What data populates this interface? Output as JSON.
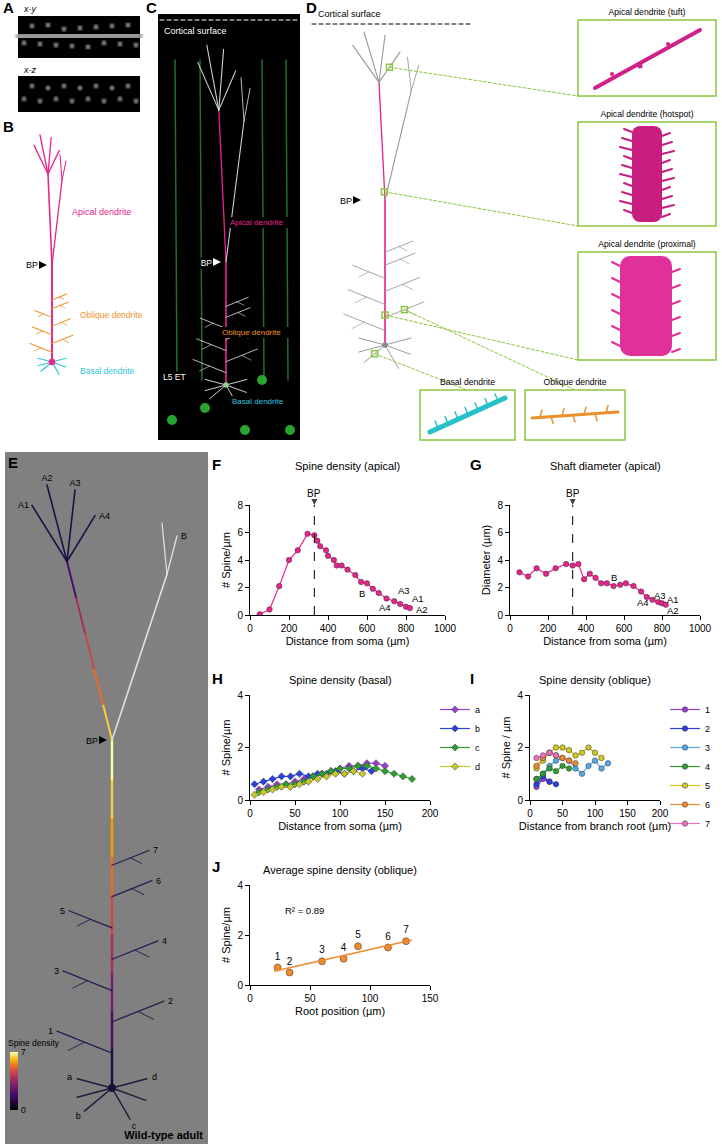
{
  "chart_data": [
    {
      "panel": "F",
      "type": "line",
      "title": "Spine density (apical)",
      "x_label": "Distance from soma (µm)",
      "y_label": "# Spine/µm",
      "xlim": [
        0,
        1000
      ],
      "xticks": [
        0,
        200,
        400,
        600,
        800,
        1000
      ],
      "ylim": [
        0,
        8
      ],
      "yticks": [
        0,
        2,
        4,
        6,
        8
      ],
      "grid": false,
      "series": [
        {
          "color": "#e8238c",
          "marker": "circle",
          "x": [
            50,
            100,
            150,
            200,
            245,
            295,
            330,
            345,
            360,
            390,
            400,
            430,
            445,
            470,
            500,
            540,
            570,
            600,
            630,
            660,
            700,
            740,
            770,
            800,
            820
          ],
          "values": [
            0.05,
            0.4,
            2.1,
            4.0,
            4.7,
            5.9,
            5.8,
            5.4,
            5.0,
            4.7,
            4.3,
            4.0,
            3.6,
            3.6,
            3.3,
            2.9,
            2.4,
            2.3,
            1.9,
            1.6,
            1.2,
            1.0,
            0.8,
            0.6,
            0.5
          ]
        }
      ],
      "vline": {
        "x": 330,
        "label": "BP",
        "line_style": "dashed"
      },
      "annotations": [
        {
          "text": "B",
          "x": 575,
          "y": 1.6
        },
        {
          "text": "A4",
          "x": 690,
          "y": 0.55
        },
        {
          "text": "A3",
          "x": 790,
          "y": 1.75
        },
        {
          "text": "A1",
          "x": 860,
          "y": 1.2
        },
        {
          "text": "A2",
          "x": 880,
          "y": 0.4
        }
      ]
    },
    {
      "panel": "G",
      "type": "line",
      "title": "Shaft diameter (apical)",
      "x_label": "Distance from soma (µm)",
      "y_label": "Diameter (µm)",
      "xlim": [
        0,
        1000
      ],
      "xticks": [
        0,
        200,
        400,
        600,
        800,
        1000
      ],
      "ylim": [
        0,
        8
      ],
      "yticks": [
        0,
        2,
        4,
        6,
        8
      ],
      "grid": false,
      "series": [
        {
          "color": "#e8238c",
          "marker": "circle",
          "x": [
            50,
            95,
            140,
            190,
            240,
            295,
            330,
            360,
            390,
            420,
            450,
            480,
            510,
            545,
            580,
            610,
            650,
            690,
            720,
            750,
            780,
            800,
            820
          ],
          "values": [
            3.1,
            2.8,
            3.4,
            3.0,
            3.4,
            3.7,
            3.6,
            3.7,
            2.6,
            3.0,
            2.7,
            2.3,
            2.3,
            2.1,
            2.2,
            2.3,
            2.1,
            1.7,
            1.3,
            1.1,
            0.95,
            0.85,
            0.75
          ]
        }
      ],
      "vline": {
        "x": 330,
        "label": "BP",
        "line_style": "dashed"
      },
      "annotations": [
        {
          "text": "B",
          "x": 545,
          "y": 2.75
        },
        {
          "text": "A3",
          "x": 790,
          "y": 1.45
        },
        {
          "text": "A1",
          "x": 860,
          "y": 1.1
        },
        {
          "text": "A4",
          "x": 700,
          "y": 0.9
        },
        {
          "text": "A2",
          "x": 860,
          "y": 0.35
        }
      ]
    },
    {
      "panel": "H",
      "type": "line",
      "title": "Spine density (basal)",
      "x_label": "Distance from soma (µm)",
      "y_label": "# Spine/µm",
      "xlim": [
        0,
        200
      ],
      "xticks": [
        0,
        50,
        100,
        150,
        200
      ],
      "ylim": [
        0,
        4
      ],
      "yticks": [
        0,
        2,
        4
      ],
      "grid": false,
      "legend": "right",
      "series": [
        {
          "name": "a",
          "color": "#9b3fd4",
          "marker": "diamond",
          "x": [
            10,
            20,
            30,
            40,
            50,
            60,
            70,
            80,
            90,
            100,
            110,
            120,
            130,
            140,
            150
          ],
          "values": [
            0.4,
            0.5,
            0.6,
            0.6,
            0.7,
            0.8,
            0.9,
            1.0,
            1.1,
            1.2,
            1.3,
            1.3,
            1.4,
            1.4,
            1.3
          ]
        },
        {
          "name": "b",
          "color": "#2c3fe0",
          "marker": "diamond",
          "x": [
            5,
            15,
            25,
            35,
            45,
            55,
            65,
            75,
            85,
            95,
            105,
            115,
            125,
            135
          ],
          "values": [
            0.6,
            0.7,
            0.8,
            0.9,
            0.9,
            1.0,
            0.9,
            1.0,
            1.0,
            1.1,
            1.0,
            1.1,
            1.2,
            1.1
          ]
        },
        {
          "name": "c",
          "color": "#2e9e2e",
          "marker": "diamond",
          "x": [
            10,
            20,
            30,
            40,
            50,
            60,
            70,
            80,
            90,
            100,
            110,
            120,
            130,
            140,
            150,
            160,
            170,
            180
          ],
          "values": [
            0.3,
            0.4,
            0.5,
            0.6,
            0.6,
            0.7,
            0.9,
            1.0,
            1.1,
            1.2,
            1.2,
            1.3,
            1.3,
            1.2,
            1.1,
            1.0,
            0.9,
            0.8
          ]
        },
        {
          "name": "d",
          "color": "#c7c72a",
          "marker": "diamond",
          "x": [
            5,
            15,
            25,
            35,
            45,
            55,
            65,
            75,
            85,
            95,
            105,
            115,
            125
          ],
          "values": [
            0.2,
            0.3,
            0.4,
            0.5,
            0.5,
            0.6,
            0.7,
            0.8,
            0.9,
            1.0,
            1.0,
            1.1,
            1.0
          ]
        }
      ]
    },
    {
      "panel": "I",
      "type": "line",
      "title": "Spine density (oblique)",
      "x_label": "Distance from branch root (µm)",
      "y_label": "# Spine / µm",
      "xlim": [
        0,
        200
      ],
      "xticks": [
        0,
        50,
        100,
        150,
        200
      ],
      "ylim": [
        0,
        4
      ],
      "yticks": [
        0,
        2,
        4
      ],
      "grid": false,
      "legend": "right",
      "series": [
        {
          "name": "1",
          "color": "#9b3fd4",
          "marker": "circle",
          "x": [
            10,
            20,
            30
          ],
          "values": [
            0.5,
            0.8,
            0.7
          ]
        },
        {
          "name": "2",
          "color": "#2c3fe0",
          "marker": "circle",
          "x": [
            10,
            20,
            30,
            40
          ],
          "values": [
            0.6,
            0.9,
            0.7,
            0.6
          ]
        },
        {
          "name": "3",
          "color": "#56a8e8",
          "marker": "circle",
          "x": [
            10,
            20,
            30,
            40,
            50,
            60,
            70,
            80,
            90,
            100,
            110,
            120
          ],
          "values": [
            0.8,
            1.0,
            1.3,
            1.5,
            1.6,
            1.5,
            1.2,
            1.0,
            1.3,
            1.5,
            1.2,
            1.4
          ]
        },
        {
          "name": "4",
          "color": "#2e9e2e",
          "marker": "circle",
          "x": [
            10,
            20,
            30,
            40,
            50,
            60
          ],
          "values": [
            0.8,
            1.0,
            1.2,
            1.1,
            1.3,
            1.2
          ]
        },
        {
          "name": "5",
          "color": "#d0c820",
          "marker": "circle",
          "x": [
            10,
            20,
            30,
            40,
            50,
            60,
            70,
            80,
            90,
            100,
            110
          ],
          "values": [
            1.2,
            1.5,
            1.8,
            2.0,
            2.0,
            1.9,
            1.7,
            1.8,
            2.0,
            1.8,
            1.6
          ]
        },
        {
          "name": "6",
          "color": "#f08a2c",
          "marker": "circle",
          "x": [
            10,
            20,
            30,
            40,
            50,
            60,
            70
          ],
          "values": [
            1.3,
            1.6,
            1.8,
            1.7,
            1.6,
            1.5,
            1.4
          ]
        },
        {
          "name": "7",
          "color": "#f070c0",
          "marker": "circle",
          "x": [
            10,
            20,
            30,
            40
          ],
          "values": [
            1.6,
            1.7,
            1.8,
            1.7
          ]
        }
      ]
    },
    {
      "panel": "J",
      "type": "scatter",
      "title": "Average spine density (oblique)",
      "x_label": "Root position (µm)",
      "y_label": "# Spine/µm",
      "xlim": [
        0,
        150
      ],
      "xticks": [
        0,
        50,
        100,
        150
      ],
      "ylim": [
        0,
        4
      ],
      "yticks": [
        0,
        2,
        4
      ],
      "grid": false,
      "series": [
        {
          "color": "#f08a2c",
          "marker": "circle",
          "x": [
            23,
            33,
            60,
            78,
            90,
            115,
            130
          ],
          "values": [
            0.7,
            0.5,
            0.95,
            1.05,
            1.55,
            1.5,
            1.75
          ],
          "point_labels": [
            "1",
            "2",
            "3",
            "4",
            "5",
            "6",
            "7"
          ]
        }
      ],
      "fit": {
        "x": [
          20,
          135
        ],
        "values": [
          0.55,
          1.8
        ],
        "color": "#f08a2c",
        "line_style": "solid"
      },
      "annotations": [
        {
          "text": "R² = 0.89",
          "x": 45,
          "y": 3.0
        }
      ]
    }
  ],
  "figure_panels": {
    "A": {
      "views": [
        "x-y",
        "x-z"
      ]
    },
    "B": {
      "labels": {
        "apical": "Apical dendrite",
        "bp": "BP",
        "oblique": "Oblique dendrite",
        "basal": "Basal dendrite"
      }
    },
    "C": {
      "surface": "Cortical surface",
      "labels": {
        "apical": "Apical dendrite",
        "bp": "BP",
        "oblique": "Oblique dendrite",
        "cell": "L5 ET",
        "basal": "Basal dendrite"
      }
    },
    "D": {
      "surface": "Cortical surface",
      "bp": "BP",
      "insets": {
        "tuft": "Apical dendrite (tuft)",
        "hotspot": "Apical dendrite (hotspot)",
        "proximal": "Apical dendrite (proximal)",
        "basal": "Basal dendrite",
        "oblique": "Oblique dendrite"
      }
    },
    "E": {
      "bp": "BP",
      "apical_tips": [
        "A1",
        "A2",
        "A3",
        "A4"
      ],
      "branch": "B",
      "obliques": [
        "1",
        "2",
        "3",
        "4",
        "5",
        "6",
        "7"
      ],
      "basals": [
        "a",
        "b",
        "c",
        "d"
      ],
      "colorbar": {
        "label": "Spine density",
        "range": [
          0,
          7
        ],
        "ticks": [
          0,
          7
        ]
      },
      "caption": "Wild-type adult"
    }
  }
}
